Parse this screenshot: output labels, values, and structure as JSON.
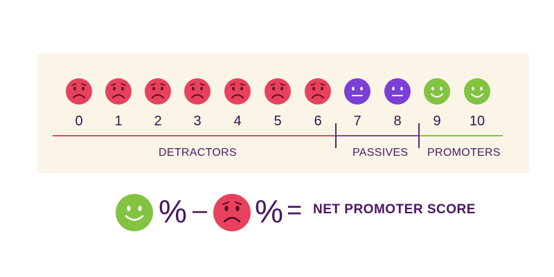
{
  "scale": {
    "scores": [
      "0",
      "1",
      "2",
      "3",
      "4",
      "5",
      "6",
      "7",
      "8",
      "9",
      "10"
    ],
    "categories": {
      "detractors": "DETRACTORS",
      "passives": "PASSIVES",
      "promoters": "PROMOTERS"
    }
  },
  "formula": {
    "percent_sign_1": "%",
    "minus": "–",
    "percent_sign_2": "%",
    "equals": "=",
    "result_label": "NET PROMOTER SCORE"
  },
  "colors": {
    "detractor": "#e8415e",
    "passive": "#7b3fd6",
    "promoter": "#82c341",
    "panel": "#fbf5e8",
    "text": "#4a1660"
  },
  "icons": {
    "detractor": "sad-face-icon",
    "passive": "neutral-face-icon",
    "promoter": "happy-face-icon"
  }
}
